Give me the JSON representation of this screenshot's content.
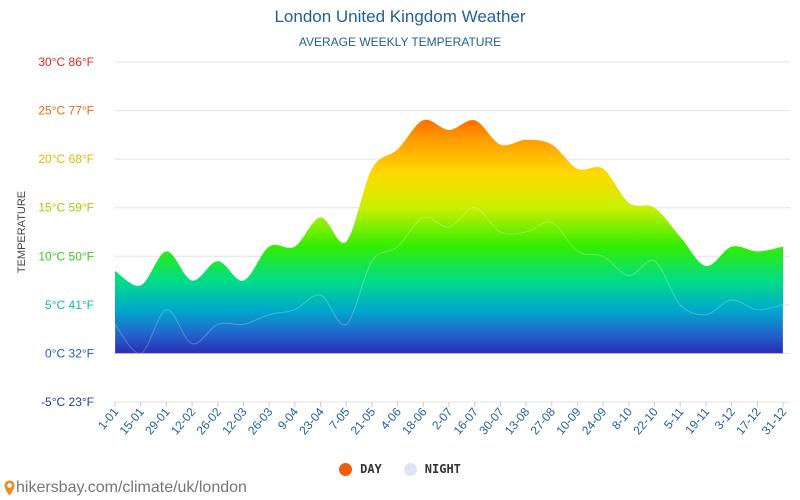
{
  "header": {
    "title": "London United Kingdom Weather",
    "subtitle": "AVERAGE WEEKLY TEMPERATURE"
  },
  "footer": {
    "source_text": "hikersbay.com/climate/uk/london",
    "pin_color": "#f08a24"
  },
  "colors": {
    "title": "#1f5f9a",
    "grid": "#e3e3e3",
    "day_legend": "#f25b0a",
    "night_legend": "#dde6f0"
  },
  "chart_data": {
    "type": "area",
    "title": "",
    "ylabel": "TEMPERATURE",
    "ylim": [
      -5,
      30
    ],
    "y_ticks": [
      {
        "value": 30,
        "label": "30°C 86°F",
        "color": "#e8291c"
      },
      {
        "value": 25,
        "label": "25°C 77°F",
        "color": "#f06a10"
      },
      {
        "value": 20,
        "label": "20°C 68°F",
        "color": "#e6b800"
      },
      {
        "value": 15,
        "label": "15°C 59°F",
        "color": "#b4c800"
      },
      {
        "value": 10,
        "label": "10°C 50°F",
        "color": "#3ec81a"
      },
      {
        "value": 5,
        "label": "5°C 41°F",
        "color": "#12b4b4"
      },
      {
        "value": 0,
        "label": "0°C 32°F",
        "color": "#1c5cc8"
      },
      {
        "value": -5,
        "label": "-5°C 23°F",
        "color": "#1c3aa8"
      }
    ],
    "categories": [
      "1-01",
      "15-01",
      "29-01",
      "12-02",
      "26-02",
      "12-03",
      "26-03",
      "9-04",
      "23-04",
      "7-05",
      "21-05",
      "4-06",
      "18-06",
      "2-07",
      "16-07",
      "30-07",
      "13-08",
      "27-08",
      "10-09",
      "24-09",
      "8-10",
      "22-10",
      "5-11",
      "19-11",
      "3-12",
      "17-12",
      "31-12"
    ],
    "series": [
      {
        "name": "DAY",
        "values": [
          8.5,
          7,
          10.5,
          7.5,
          9.5,
          7.5,
          11,
          11,
          14,
          11.5,
          19,
          21,
          24,
          23,
          24,
          21.5,
          22,
          21.5,
          19,
          19,
          15.5,
          15,
          12,
          9,
          11,
          10.5,
          11
        ]
      },
      {
        "name": "NIGHT",
        "values": [
          3,
          0,
          4.5,
          1,
          3,
          3,
          4,
          4.5,
          6,
          3,
          9.5,
          11,
          14,
          13,
          15,
          12.5,
          12.5,
          13.5,
          10.5,
          10,
          8,
          9.5,
          5,
          4,
          5.5,
          4.5,
          5
        ]
      }
    ],
    "legend": {
      "placement": "bottom-center"
    },
    "grid": true
  }
}
